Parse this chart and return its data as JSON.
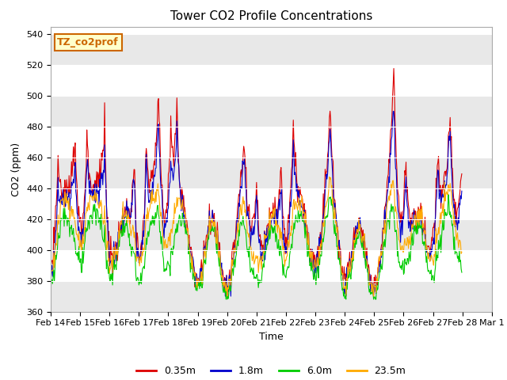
{
  "title": "Tower CO2 Profile Concentrations",
  "xlabel": "Time",
  "ylabel": "CO2 (ppm)",
  "ylim": [
    360,
    545
  ],
  "yticks": [
    360,
    380,
    400,
    420,
    440,
    460,
    480,
    500,
    520,
    540
  ],
  "annotation_text": "TZ_co2prof",
  "annotation_color": "#cc6600",
  "annotation_bg": "#ffffcc",
  "annotation_edge": "#cc6600",
  "fig_bg": "white",
  "plot_bg": "white",
  "band_color": "#e8e8e8",
  "grid_color": "#dddddd",
  "line_colors": [
    "#dd0000",
    "#0000cc",
    "#00cc00",
    "#ffaa00"
  ],
  "line_labels": [
    "0.35m",
    "1.8m",
    "6.0m",
    "23.5m"
  ],
  "line_width": 0.8,
  "tick_fontsize": 8,
  "label_fontsize": 9,
  "title_fontsize": 11,
  "legend_fontsize": 9
}
